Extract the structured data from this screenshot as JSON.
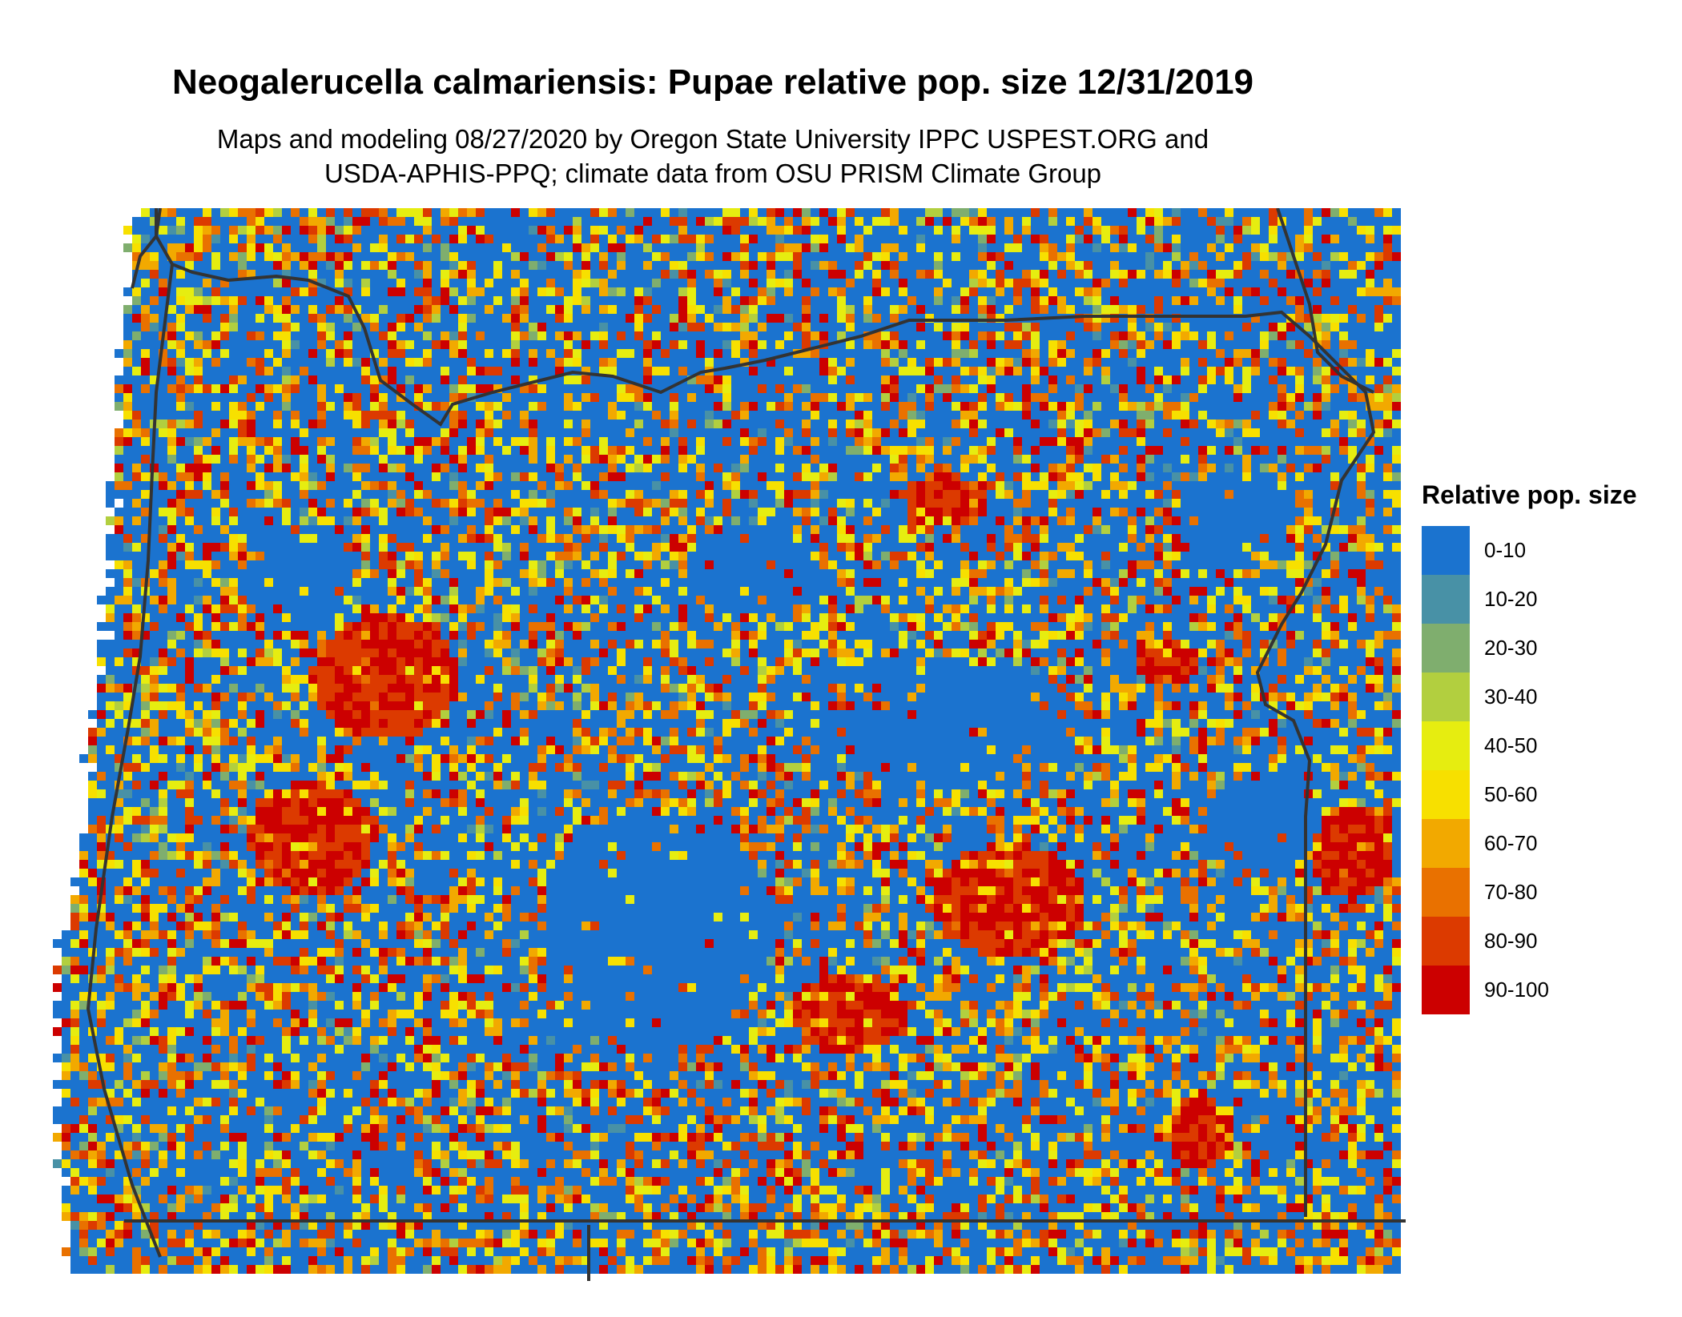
{
  "title": "Neogalerucella calmariensis: Pupae relative pop. size 12/31/2019",
  "subtitle_line1": "Maps and modeling 08/27/2020 by Oregon State University IPPC USPEST.ORG and",
  "subtitle_line2": "USDA-APHIS-PPQ; climate data from OSU PRISM Climate Group",
  "legend": {
    "title": "Relative pop. size",
    "items": [
      {
        "label": "0-10",
        "color": "#1b73cf"
      },
      {
        "label": "10-20",
        "color": "#4891a6"
      },
      {
        "label": "20-30",
        "color": "#7fae6e"
      },
      {
        "label": "30-40",
        "color": "#b2cf3f"
      },
      {
        "label": "40-50",
        "color": "#e6ed10"
      },
      {
        "label": "50-60",
        "color": "#f7e000"
      },
      {
        "label": "60-70",
        "color": "#f2a900"
      },
      {
        "label": "70-80",
        "color": "#e97100"
      },
      {
        "label": "80-90",
        "color": "#dc3a00"
      },
      {
        "label": "90-100",
        "color": "#cc0000"
      }
    ]
  },
  "boundary_color": "#333333"
}
